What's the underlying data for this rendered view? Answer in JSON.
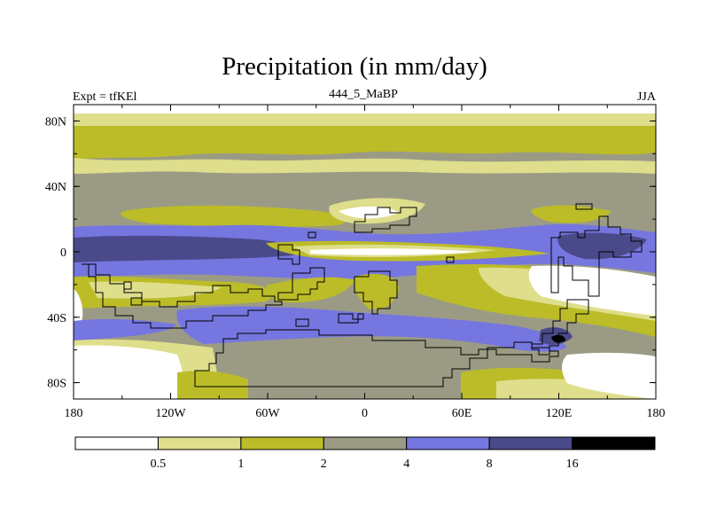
{
  "title": "Precipitation (in mm/day)",
  "left_label": "Expt = tfKEl",
  "center_label": "444_5_MaBP",
  "right_label": "JJA",
  "chart_data": {
    "type": "heatmap",
    "x_ticks": [
      "180",
      "120W",
      "60W",
      "0",
      "60E",
      "120E",
      "180"
    ],
    "y_ticks": [
      "80N",
      "40N",
      "0",
      "40S",
      "80S"
    ],
    "x_range": [
      -180,
      180
    ],
    "y_range": [
      -90,
      90
    ],
    "colorbar_levels": [
      "0.5",
      "1",
      "2",
      "4",
      "8",
      "16"
    ],
    "colors": [
      "#ffffff",
      "#dede8c",
      "#bcbc28",
      "#9b9b85",
      "#7676e0",
      "#4a4a8a",
      "#000000"
    ]
  }
}
